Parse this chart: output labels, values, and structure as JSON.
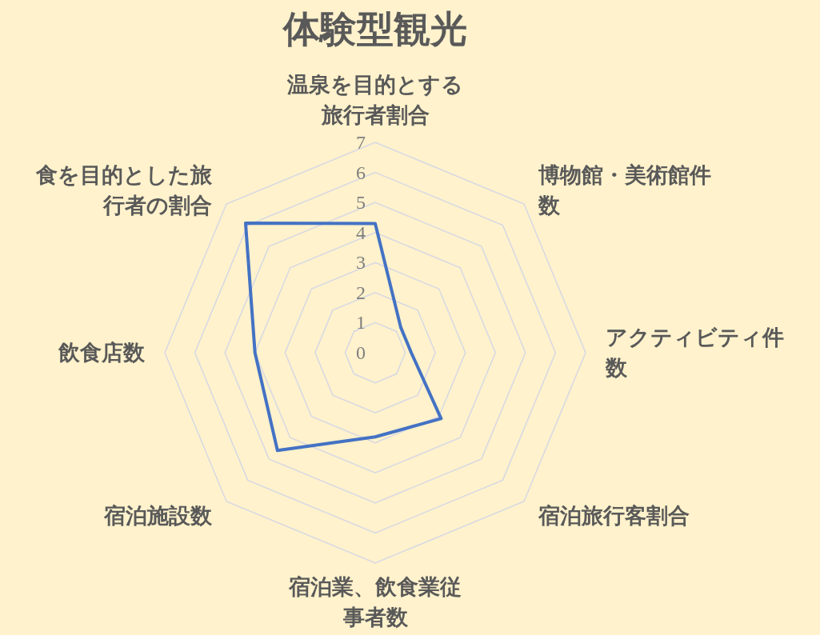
{
  "chart_data": {
    "type": "radar",
    "title": "体験型観光",
    "categories": [
      "温泉を目的とする旅行者割合",
      "博物館・美術館件数",
      "アクティビティ件数",
      "宿泊旅行客割合",
      "宿泊業、飲食業従事者数",
      "宿泊施設数",
      "飲食店数",
      "食を目的とした旅行者の割合"
    ],
    "series": [
      {
        "color": "#4472c4",
        "values": [
          4.3,
          1.2,
          1.2,
          3.1,
          2.8,
          4.6,
          4.0,
          6.1
        ]
      }
    ],
    "ylim": [
      0,
      7
    ],
    "yticks": [
      0,
      1,
      2,
      3,
      4,
      5,
      6,
      7
    ],
    "grid": true
  }
}
